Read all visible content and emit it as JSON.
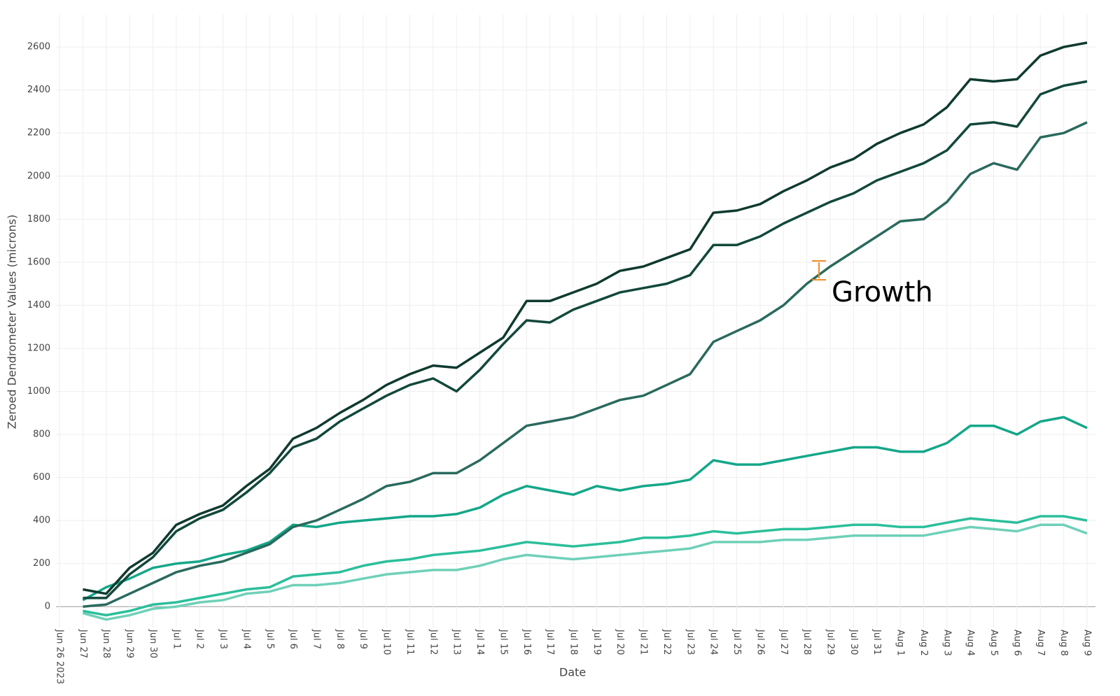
{
  "chart_data": {
    "type": "line",
    "xlabel": "Date",
    "ylabel": "Zeroed Dendrometer Values (microns)",
    "annotation": "Growth",
    "grid": true,
    "x": [
      "2023-06-27",
      "2023-06-28",
      "2023-06-29",
      "2023-06-30",
      "2023-07-01",
      "2023-07-02",
      "2023-07-03",
      "2023-07-04",
      "2023-07-05",
      "2023-07-06",
      "2023-07-07",
      "2023-07-08",
      "2023-07-09",
      "2023-07-10",
      "2023-07-11",
      "2023-07-12",
      "2023-07-13",
      "2023-07-14",
      "2023-07-15",
      "2023-07-16",
      "2023-07-17",
      "2023-07-18",
      "2023-07-19",
      "2023-07-20",
      "2023-07-21",
      "2023-07-22",
      "2023-07-23",
      "2023-07-24",
      "2023-07-25",
      "2023-07-26",
      "2023-07-27",
      "2023-07-28",
      "2023-07-29",
      "2023-07-30",
      "2023-07-31",
      "2023-08-01",
      "2023-08-02",
      "2023-08-03",
      "2023-08-04",
      "2023-08-05",
      "2023-08-06",
      "2023-08-07",
      "2023-08-08",
      "2023-08-09"
    ],
    "series": [
      {
        "color": "#0f3a2f",
        "values": [
          80,
          60,
          180,
          250,
          380,
          430,
          470,
          560,
          640,
          780,
          830,
          900,
          960,
          1030,
          1080,
          1120,
          1110,
          1180,
          1250,
          1420,
          1420,
          1460,
          1500,
          1560,
          1580,
          1620,
          1660,
          1830,
          1840,
          1870,
          1930,
          1980,
          2040,
          2080,
          2150,
          2200,
          2240,
          2320,
          2450,
          2440,
          2450,
          2560,
          2600,
          2620
        ]
      },
      {
        "color": "#12483b",
        "values": [
          40,
          40,
          150,
          230,
          350,
          410,
          450,
          530,
          620,
          740,
          780,
          860,
          920,
          980,
          1030,
          1060,
          1000,
          1100,
          1220,
          1330,
          1320,
          1380,
          1420,
          1460,
          1480,
          1500,
          1540,
          1680,
          1680,
          1720,
          1780,
          1830,
          1880,
          1920,
          1980,
          2020,
          2060,
          2120,
          2240,
          2250,
          2230,
          2380,
          2420,
          2440
        ]
      },
      {
        "color": "#2a6a5d",
        "values": [
          0,
          10,
          60,
          110,
          160,
          190,
          210,
          250,
          290,
          370,
          400,
          450,
          500,
          560,
          580,
          620,
          620,
          680,
          760,
          840,
          860,
          880,
          920,
          960,
          980,
          1030,
          1080,
          1230,
          1280,
          1330,
          1400,
          1500,
          1580,
          1650,
          1720,
          1790,
          1800,
          1880,
          2010,
          2060,
          2030,
          2180,
          2200,
          2250
        ]
      },
      {
        "color": "#14a789",
        "values": [
          30,
          90,
          130,
          180,
          200,
          210,
          240,
          260,
          300,
          380,
          370,
          390,
          400,
          410,
          420,
          420,
          430,
          460,
          520,
          560,
          540,
          520,
          560,
          540,
          560,
          570,
          590,
          680,
          660,
          660,
          680,
          700,
          720,
          740,
          740,
          720,
          720,
          760,
          840,
          840,
          800,
          860,
          880,
          830
        ]
      },
      {
        "color": "#2bbf9b",
        "values": [
          -20,
          -40,
          -20,
          10,
          20,
          40,
          60,
          80,
          90,
          140,
          150,
          160,
          190,
          210,
          220,
          240,
          250,
          260,
          280,
          300,
          290,
          280,
          290,
          300,
          320,
          320,
          330,
          350,
          340,
          350,
          360,
          360,
          370,
          380,
          380,
          370,
          370,
          390,
          410,
          400,
          390,
          420,
          420,
          400
        ]
      },
      {
        "color": "#6fd0b8",
        "values": [
          -30,
          -60,
          -40,
          -10,
          0,
          20,
          30,
          60,
          70,
          100,
          100,
          110,
          130,
          150,
          160,
          170,
          170,
          190,
          220,
          240,
          230,
          220,
          230,
          240,
          250,
          260,
          270,
          300,
          300,
          300,
          310,
          310,
          320,
          330,
          330,
          330,
          330,
          350,
          370,
          360,
          350,
          380,
          380,
          340
        ]
      }
    ],
    "xlim": [
      "2023-06-26",
      "2023-08-09"
    ],
    "ylim": [
      -100,
      2750
    ],
    "yticks": [
      0,
      200,
      400,
      600,
      800,
      1000,
      1200,
      1400,
      1600,
      1800,
      2000,
      2200,
      2400,
      2600
    ],
    "xticks": [
      {
        "value": "2023-06-26",
        "label": "Jun 26 2023"
      },
      {
        "value": "2023-06-27",
        "label": "Jun 27"
      },
      {
        "value": "2023-06-28",
        "label": "Jun 28"
      },
      {
        "value": "2023-06-29",
        "label": "Jun 29"
      },
      {
        "value": "2023-06-30",
        "label": "Jun 30"
      },
      {
        "value": "2023-07-01",
        "label": "Jul 1"
      },
      {
        "value": "2023-07-02",
        "label": "Jul 2"
      },
      {
        "value": "2023-07-03",
        "label": "Jul 3"
      },
      {
        "value": "2023-07-04",
        "label": "Jul 4"
      },
      {
        "value": "2023-07-05",
        "label": "Jul 5"
      },
      {
        "value": "2023-07-06",
        "label": "Jul 6"
      },
      {
        "value": "2023-07-07",
        "label": "Jul 7"
      },
      {
        "value": "2023-07-08",
        "label": "Jul 8"
      },
      {
        "value": "2023-07-09",
        "label": "Jul 9"
      },
      {
        "value": "2023-07-10",
        "label": "Jul 10"
      },
      {
        "value": "2023-07-11",
        "label": "Jul 11"
      },
      {
        "value": "2023-07-12",
        "label": "Jul 12"
      },
      {
        "value": "2023-07-13",
        "label": "Jul 13"
      },
      {
        "value": "2023-07-14",
        "label": "Jul 14"
      },
      {
        "value": "2023-07-15",
        "label": "Jul 15"
      },
      {
        "value": "2023-07-16",
        "label": "Jul 16"
      },
      {
        "value": "2023-07-17",
        "label": "Jul 17"
      },
      {
        "value": "2023-07-18",
        "label": "Jul 18"
      },
      {
        "value": "2023-07-19",
        "label": "Jul 19"
      },
      {
        "value": "2023-07-20",
        "label": "Jul 20"
      },
      {
        "value": "2023-07-21",
        "label": "Jul 21"
      },
      {
        "value": "2023-07-22",
        "label": "Jul 22"
      },
      {
        "value": "2023-07-23",
        "label": "Jul 23"
      },
      {
        "value": "2023-07-24",
        "label": "Jul 24"
      },
      {
        "value": "2023-07-25",
        "label": "Jul 25"
      },
      {
        "value": "2023-07-26",
        "label": "Jul 26"
      },
      {
        "value": "2023-07-27",
        "label": "Jul 27"
      },
      {
        "value": "2023-07-28",
        "label": "Jul 28"
      },
      {
        "value": "2023-07-29",
        "label": "Jul 29"
      },
      {
        "value": "2023-07-30",
        "label": "Jul 30"
      },
      {
        "value": "2023-07-31",
        "label": "Jul 31"
      },
      {
        "value": "2023-08-01",
        "label": "Aug 1"
      },
      {
        "value": "2023-08-02",
        "label": "Aug 2"
      },
      {
        "value": "2023-08-03",
        "label": "Aug 3"
      },
      {
        "value": "2023-08-04",
        "label": "Aug 4"
      },
      {
        "value": "2023-08-05",
        "label": "Aug 5"
      },
      {
        "value": "2023-08-06",
        "label": "Aug 6"
      },
      {
        "value": "2023-08-07",
        "label": "Aug 7"
      },
      {
        "value": "2023-08-08",
        "label": "Aug 8"
      },
      {
        "value": "2023-08-09",
        "label": "Aug 9"
      }
    ]
  }
}
